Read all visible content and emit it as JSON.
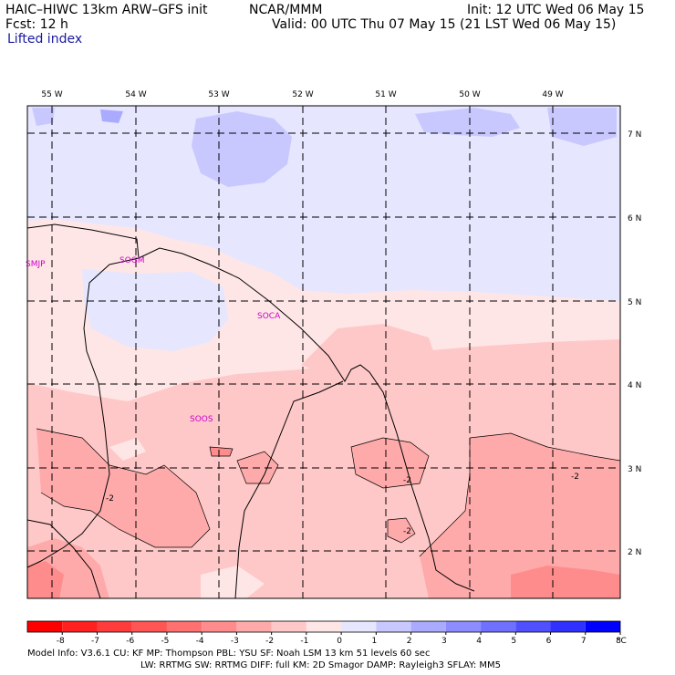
{
  "header": {
    "title": "HAIC–HIWC 13km ARW–GFS init",
    "org": "NCAR/MMM",
    "init": "Init: 12 UTC Wed 06 May 15",
    "fcst": "Fcst:   12 h",
    "valid": "Valid: 00 UTC Thu 07 May 15 (21 LST Wed 06 May 15)",
    "field": "Lifted index"
  },
  "map": {
    "lon_labels": [
      "55 W",
      "54 W",
      "53 W",
      "52 W",
      "51 W",
      "50 W",
      "49 W"
    ],
    "lat_labels": [
      "7 N",
      "6 N",
      "5 N",
      "4 N",
      "3 N",
      "2 N"
    ],
    "stations": [
      "SMJP",
      "SOGM",
      "SOCA",
      "SOOS"
    ],
    "contour_labels": [
      "-2",
      "-2",
      "-2",
      "-2"
    ]
  },
  "colorbar": {
    "tick_labels": [
      "-8",
      "-7",
      "-6",
      "-5",
      "-4",
      "-3",
      "-2",
      "-1",
      "0",
      "1",
      "2",
      "3",
      "4",
      "5",
      "6",
      "7",
      "8"
    ],
    "unit": "°C",
    "colors": [
      "#ff0000",
      "#ff2020",
      "#ff3c3c",
      "#ff5555",
      "#ff7070",
      "#ff8c8c",
      "#ffaaaa",
      "#ffc8c8",
      "#ffe6e6",
      "#e6e6ff",
      "#c8c8ff",
      "#aaaaff",
      "#8c8cff",
      "#7070ff",
      "#5050ff",
      "#3030ff",
      "#0000ff"
    ]
  },
  "footer": {
    "line1": "Model Info: V3.6.1    CU: KF       MP: Thompson     PBL: YSU      SF: Noah LSM      13 km    51 levels   60 sec",
    "line2": "LW: RRTMG    SW: RRTMG   DIFF: full    KM: 2D Smagor DAMP: Rayleigh3   SFLAY: MM5"
  }
}
